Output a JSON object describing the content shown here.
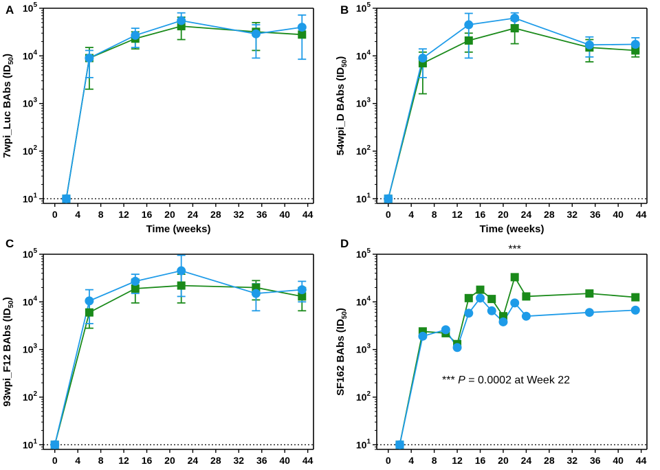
{
  "colors": {
    "green": "#1a8a1a",
    "blue": "#1e9be8",
    "axis": "#000000",
    "baseline": "#000000"
  },
  "chart_data": [
    {
      "panel": "A",
      "type": "line",
      "ylabel": "7wpi_Luc BAbs (ID50)",
      "ylabel_main": "7wpi_Luc BAbs (ID",
      "ylabel_sub": "50",
      "ylabel_close": ")",
      "xlabel": "Time (weeks)",
      "xticks": [
        0,
        4,
        8,
        12,
        16,
        20,
        24,
        28,
        32,
        36,
        40,
        44
      ],
      "xlim": [
        -2,
        45
      ],
      "yscale": "log",
      "ylim": [
        8,
        100000
      ],
      "ytick_exponents": [
        1,
        2,
        3,
        4,
        5
      ],
      "baseline": 10,
      "series": [
        {
          "name": "green",
          "marker": "square",
          "x": [
            2,
            6,
            14,
            22,
            35,
            43
          ],
          "y": [
            10,
            9000,
            23000,
            42000,
            32000,
            28000
          ],
          "err_low": [
            null,
            2000,
            14000,
            22000,
            13000,
            null
          ],
          "err_high": [
            null,
            15000,
            32000,
            65000,
            50000,
            null
          ]
        },
        {
          "name": "blue",
          "marker": "circle",
          "x": [
            2,
            6,
            14,
            22,
            35,
            43
          ],
          "y": [
            10,
            9000,
            27000,
            55000,
            29000,
            40000
          ],
          "err_low": [
            null,
            3500,
            15000,
            40000,
            9000,
            8500
          ],
          "err_high": [
            null,
            13000,
            38000,
            80000,
            45000,
            72000
          ]
        }
      ]
    },
    {
      "panel": "B",
      "type": "line",
      "ylabel": "54wpi_D BAbs (ID50)",
      "ylabel_main": "54wpi_D BAbs (ID",
      "ylabel_sub": "50",
      "ylabel_close": ")",
      "xlabel": "Time (weeks)",
      "xticks": [
        0,
        4,
        8,
        12,
        16,
        20,
        24,
        28,
        32,
        36,
        40,
        44
      ],
      "xlim": [
        -2,
        45
      ],
      "yscale": "log",
      "ylim": [
        8,
        100000
      ],
      "ytick_exponents": [
        1,
        2,
        3,
        4,
        5
      ],
      "baseline": 10,
      "series": [
        {
          "name": "green",
          "marker": "square",
          "x": [
            0,
            6,
            14,
            22,
            35,
            43
          ],
          "y": [
            10,
            7000,
            21000,
            38000,
            15000,
            13000
          ],
          "err_low": [
            null,
            1600,
            12000,
            18000,
            7500,
            9500
          ],
          "err_high": [
            null,
            12000,
            30000,
            55000,
            22000,
            16000
          ]
        },
        {
          "name": "blue",
          "marker": "circle",
          "x": [
            0,
            6,
            14,
            22,
            35,
            43
          ],
          "y": [
            10,
            9000,
            45000,
            62000,
            17000,
            17500
          ],
          "err_low": [
            null,
            3500,
            9000,
            45000,
            9500,
            12000
          ],
          "err_high": [
            null,
            14000,
            78000,
            80000,
            25000,
            24000
          ]
        }
      ]
    },
    {
      "panel": "C",
      "type": "line",
      "ylabel": "93wpi_F12 BAbs (ID50)",
      "ylabel_main": "93wpi_F12 BAbs (ID",
      "ylabel_sub": "50",
      "ylabel_close": ")",
      "xlabel": "Time (weeks)",
      "xticks": [
        0,
        4,
        8,
        12,
        16,
        20,
        24,
        28,
        32,
        36,
        40,
        44
      ],
      "xlim": [
        -2,
        45
      ],
      "yscale": "log",
      "ylim": [
        8,
        100000
      ],
      "ytick_exponents": [
        1,
        2,
        3,
        4,
        5
      ],
      "baseline": 10,
      "series": [
        {
          "name": "green",
          "marker": "square",
          "x": [
            0,
            6,
            14,
            22,
            35,
            43
          ],
          "y": [
            10,
            6000,
            19000,
            22000,
            20000,
            13000
          ],
          "err_low": [
            null,
            2800,
            9500,
            9500,
            11000,
            6500
          ],
          "err_high": [
            null,
            10000,
            30000,
            38000,
            28000,
            20000
          ]
        },
        {
          "name": "blue",
          "marker": "circle",
          "x": [
            0,
            6,
            14,
            22,
            35,
            43
          ],
          "y": [
            10,
            10500,
            27000,
            45000,
            15000,
            18000
          ],
          "err_low": [
            null,
            3500,
            15000,
            13000,
            6500,
            10000
          ],
          "err_high": [
            null,
            18000,
            38000,
            95000,
            24000,
            27000
          ]
        }
      ]
    },
    {
      "panel": "D",
      "type": "line",
      "ylabel": "SF162 BAbs (ID50)",
      "ylabel_main": "SF162 BAbs (ID",
      "ylabel_sub": "50",
      "ylabel_close": ")",
      "xlabel": "Time (weeks)",
      "xticks": [
        0,
        4,
        8,
        12,
        16,
        20,
        24,
        28,
        32,
        36,
        40,
        44
      ],
      "xlim": [
        -2,
        45
      ],
      "yscale": "log",
      "ylim": [
        8,
        100000
      ],
      "ytick_exponents": [
        1,
        2,
        3,
        4,
        5
      ],
      "baseline": 10,
      "series": [
        {
          "name": "green",
          "marker": "square",
          "x": [
            2,
            6,
            10,
            12,
            14,
            16,
            18,
            20,
            22,
            24,
            35,
            43
          ],
          "y": [
            10,
            2400,
            2200,
            1300,
            12000,
            18000,
            11500,
            5000,
            33000,
            13000,
            15000,
            12500
          ]
        },
        {
          "name": "blue",
          "marker": "circle",
          "x": [
            2,
            6,
            10,
            12,
            14,
            16,
            18,
            20,
            22,
            24,
            35,
            43
          ],
          "y": [
            10,
            1900,
            2600,
            1100,
            5800,
            12000,
            6500,
            3800,
            9500,
            5000,
            6000,
            6700
          ]
        }
      ],
      "significance": {
        "stars": "***",
        "x": 22
      },
      "annotation": {
        "stars": "***",
        "p_symbol": "P",
        "text": " = 0.0002 at Week 22"
      }
    }
  ]
}
